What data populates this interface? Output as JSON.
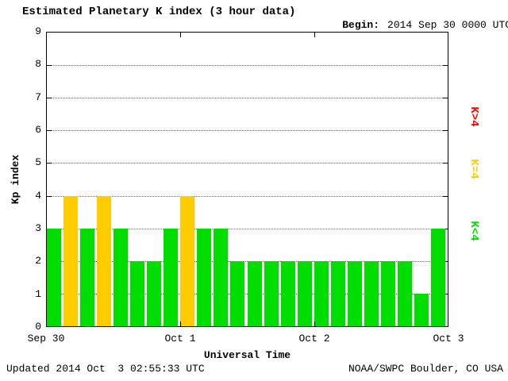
{
  "header": {
    "title": "Estimated Planetary K index (3 hour data)",
    "begin_label": "Begin:",
    "begin_value": "2014 Sep 30 0000 UTC"
  },
  "footer": {
    "updated": "Updated 2014 Oct  3 02:55:33 UTC",
    "source": "NOAA/SWPC Boulder, CO USA"
  },
  "legend": {
    "items": [
      {
        "id": "k-above-4",
        "label": "K>4",
        "color": "#ff0000"
      },
      {
        "id": "k-equal-4",
        "label": "K=4",
        "color": "#ffcc00"
      },
      {
        "id": "k-below-4",
        "label": "K<4",
        "color": "#00dd00"
      }
    ]
  },
  "chart_data": {
    "type": "bar",
    "title": "Estimated Planetary K index (3 hour data)",
    "xlabel": "Universal Time",
    "ylabel": "Kp index",
    "ylim": [
      0,
      9
    ],
    "y_ticks": [
      0,
      1,
      2,
      3,
      4,
      5,
      6,
      7,
      8,
      9
    ],
    "x_ticks": [
      "Sep 30",
      "Oct 1",
      "Oct 2",
      "Oct 3"
    ],
    "begin": "2014 Sep 30 0000 UTC",
    "bar_interval_hours": 3,
    "values": [
      3,
      4,
      3,
      4,
      3,
      2,
      2,
      3,
      4,
      3,
      3,
      2,
      2,
      2,
      2,
      2,
      2,
      2,
      2,
      2,
      2,
      2,
      1,
      3
    ],
    "color_threshold": 4,
    "colors": {
      "below": "#00dd00",
      "equal": "#ffcc00",
      "above": "#ff0000"
    },
    "grid": "horizontal dotted lines at integer Kp values",
    "legend_position": "right"
  }
}
